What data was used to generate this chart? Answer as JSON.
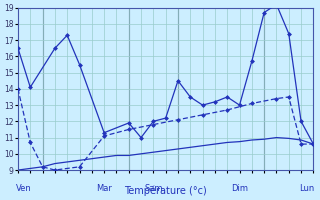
{
  "xlabel": "Température (°c)",
  "bg_color": "#cceeff",
  "line_color": "#2233bb",
  "grid_color": "#99cccc",
  "ylim": [
    9,
    19
  ],
  "yticks": [
    9,
    10,
    11,
    12,
    13,
    14,
    15,
    16,
    17,
    18,
    19
  ],
  "xlim": [
    0,
    24
  ],
  "x_tick_labels": [
    "Ven",
    "Mar",
    "Sam",
    "Dim",
    "Lun"
  ],
  "x_tick_positions": [
    0.5,
    7,
    11,
    18,
    23.5
  ],
  "x_vlines": [
    2,
    9,
    13,
    20
  ],
  "line1_x": [
    0,
    1,
    3,
    4,
    5,
    7,
    9,
    10,
    11,
    12,
    13,
    14,
    15,
    16,
    17,
    18,
    19,
    20,
    21,
    22,
    23,
    24
  ],
  "line1_y": [
    16.5,
    14.1,
    16.5,
    17.3,
    15.5,
    11.3,
    11.9,
    11.0,
    12.0,
    12.2,
    14.5,
    13.5,
    13.0,
    13.2,
    13.5,
    13.0,
    15.7,
    18.7,
    19.2,
    17.4,
    12.0,
    10.6
  ],
  "line2_x": [
    0,
    1,
    2,
    3,
    5,
    7,
    9,
    11,
    13,
    15,
    17,
    19,
    21,
    22,
    23,
    24
  ],
  "line2_y": [
    14.0,
    10.7,
    9.2,
    9.0,
    9.2,
    11.1,
    11.5,
    11.8,
    12.1,
    12.4,
    12.7,
    13.1,
    13.4,
    13.5,
    10.6,
    10.6
  ],
  "line3_x": [
    0,
    1,
    2,
    3,
    4,
    5,
    6,
    7,
    8,
    9,
    10,
    11,
    12,
    13,
    14,
    15,
    16,
    17,
    18,
    19,
    20,
    21,
    22,
    23,
    24
  ],
  "line3_y": [
    9.0,
    9.1,
    9.2,
    9.4,
    9.5,
    9.6,
    9.7,
    9.8,
    9.9,
    9.9,
    10.0,
    10.1,
    10.2,
    10.3,
    10.4,
    10.5,
    10.6,
    10.7,
    10.75,
    10.85,
    10.9,
    11.0,
    10.95,
    10.85,
    10.6
  ]
}
